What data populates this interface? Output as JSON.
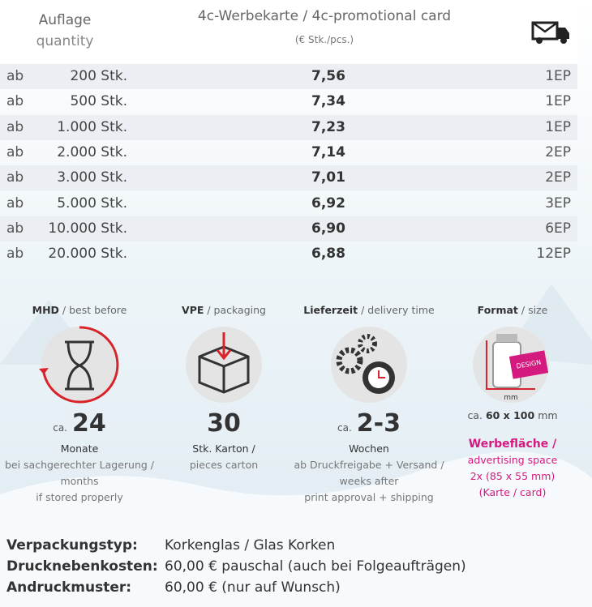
{
  "table": {
    "header": {
      "quantity_de": "Auflage",
      "quantity_en": "quantity",
      "product": "4c-Werbekarte / 4c-promotional card",
      "unit": "(€ Stk./pcs.)"
    },
    "rows": [
      [
        "ab",
        "200 Stk.",
        "7,56",
        "1EP"
      ],
      [
        "ab",
        "500 Stk.",
        "7,34",
        "1EP"
      ],
      [
        "ab",
        "1.000 Stk.",
        "7,23",
        "1EP"
      ],
      [
        "ab",
        "2.000 Stk.",
        "7,14",
        "2EP"
      ],
      [
        "ab",
        "3.000 Stk.",
        "7,01",
        "2EP"
      ],
      [
        "ab",
        "5.000 Stk.",
        "6,92",
        "3EP"
      ],
      [
        "ab",
        "10.000 Stk.",
        "6,90",
        "6EP"
      ],
      [
        "ab",
        "20.000 Stk.",
        "6,88",
        "12EP"
      ]
    ]
  },
  "info": [
    {
      "title_bold": "MHD",
      "title_rest": "/ best before",
      "prefix": "ca.",
      "big": "24",
      "lines": [
        "Monate",
        "bei sachgerechter Lagerung /",
        "months",
        "if stored properly"
      ]
    },
    {
      "title_bold": "VPE",
      "title_rest": "/ packaging",
      "prefix": "",
      "big": "30",
      "lines": [
        "Stk. Karton /",
        "pieces carton"
      ]
    },
    {
      "title_bold": "Lieferzeit",
      "title_rest": "/ delivery time",
      "prefix": "ca.",
      "big": "2-3",
      "lines": [
        "Wochen",
        "ab Druckfreigabe + Versand /",
        "weeks after",
        "print approval + shipping"
      ]
    },
    {
      "title_bold": "Format",
      "title_rest": "/ size",
      "icon_texts": [
        "DESIGN",
        "mm"
      ],
      "size_prefix": "ca.",
      "size": "60 x 100",
      "size_unit": "mm",
      "lines": [
        "Werbefläche /",
        "advertising space",
        "2x (85 x 55 mm)",
        "(Karte / card)"
      ]
    }
  ],
  "footer": [
    [
      "Verpackungstyp:",
      "Korkenglas / Glas Korken"
    ],
    [
      "Drucknebenkosten:",
      "60,00 € pauschal (auch bei Folgeaufträgen)"
    ],
    [
      "Andruckmuster:",
      "60,00 € (nur auf Wunsch)"
    ]
  ]
}
